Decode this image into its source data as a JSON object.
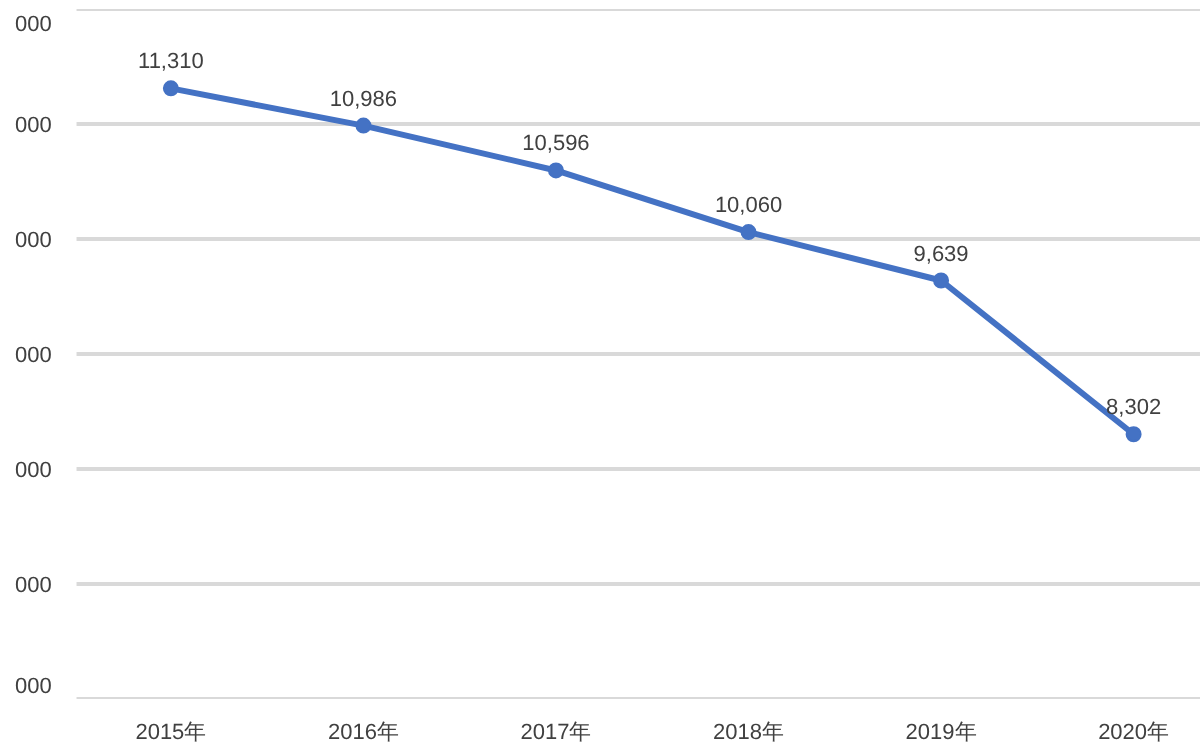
{
  "chart_data": {
    "type": "line",
    "categories": [
      "2015年",
      "2016年",
      "2017年",
      "2018年",
      "2019年",
      "2020年"
    ],
    "series": [
      {
        "color": "#4472c4",
        "values": [
          11310,
          10986,
          10596,
          10060,
          9639,
          8302
        ],
        "value_labels": [
          "11,310",
          "10,986",
          "10,596",
          "10,060",
          "9,639",
          "8,302"
        ]
      }
    ],
    "ylim": [
      6000,
      12000
    ],
    "yticks": [
      {
        "value": 6000,
        "label": null
      },
      {
        "value": 7000,
        "label": null
      },
      {
        "value": 8000,
        "label": null
      },
      {
        "value": 9000,
        "label": null
      },
      {
        "value": 10000,
        "label": null
      },
      {
        "value": 11000,
        "label": null
      },
      {
        "value": 12000,
        "label": null
      }
    ],
    "annotations": [
      "000",
      "000",
      "000",
      "000",
      "000",
      "000",
      "000"
    ],
    "tick_labels": "x",
    "grid": "y",
    "marker": "circle",
    "line_style": "solid"
  }
}
